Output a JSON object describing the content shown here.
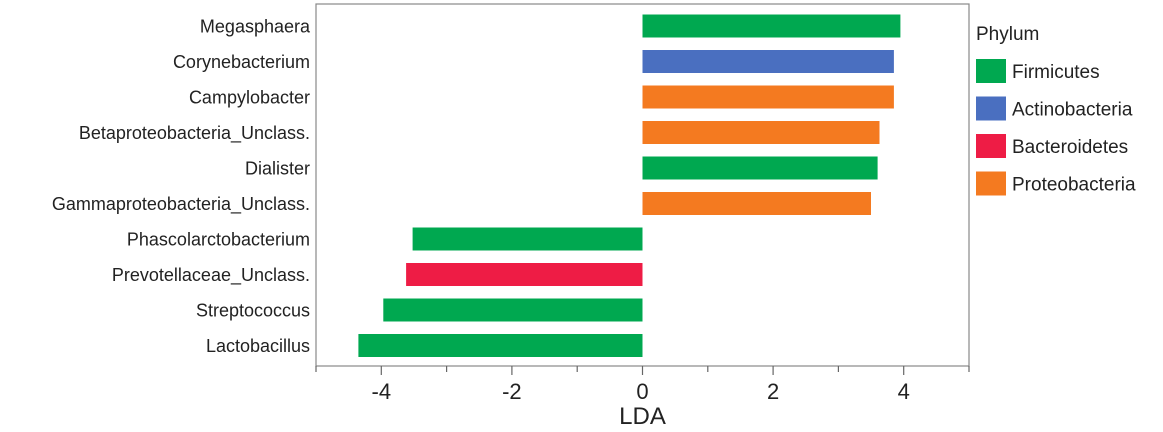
{
  "chart_data": {
    "type": "bar",
    "orientation": "horizontal",
    "xlabel": "LDA",
    "ylabel": "",
    "xlim": [
      -5,
      5
    ],
    "xticks": [
      -4,
      -2,
      0,
      2,
      4
    ],
    "grid": false,
    "legend_position": "right",
    "categories": [
      "Megasphaera",
      "Corynebacterium",
      "Campylobacter",
      "Betaproteobacteria_Unclass.",
      "Dialister",
      "Gammaproteobacteria_Unclass.",
      "Phascolarctobacterium",
      "Prevotellaceae_Unclass.",
      "Streptococcus",
      "Lactobacillus"
    ],
    "values": [
      3.95,
      3.85,
      3.85,
      3.63,
      3.6,
      3.5,
      -3.52,
      -3.62,
      -3.97,
      -4.35
    ],
    "groups": [
      "Firmicutes",
      "Actinobacteria",
      "Proteobacteria",
      "Proteobacteria",
      "Firmicutes",
      "Proteobacteria",
      "Firmicutes",
      "Bacteroidetes",
      "Firmicutes",
      "Firmicutes"
    ],
    "legend": {
      "title": "Phylum",
      "entries": [
        {
          "name": "Firmicutes",
          "color": "#00a850"
        },
        {
          "name": "Actinobacteria",
          "color": "#4a6fc0"
        },
        {
          "name": "Bacteroidetes",
          "color": "#ee1c45"
        },
        {
          "name": "Proteobacteria",
          "color": "#f47a20"
        }
      ]
    }
  }
}
